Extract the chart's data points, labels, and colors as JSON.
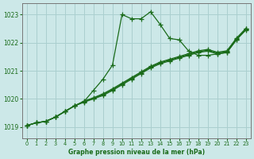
{
  "title": "Graphe pression niveau de la mer (hPa)",
  "background_color": "#cce8e8",
  "grid_color": "#aacfcf",
  "line_color": "#1a6b1a",
  "ylim": [
    1018.6,
    1023.4
  ],
  "xlim": [
    -0.5,
    23.5
  ],
  "yticks": [
    1019,
    1020,
    1021,
    1022,
    1023
  ],
  "xticks": [
    0,
    1,
    2,
    3,
    4,
    5,
    6,
    7,
    8,
    9,
    10,
    11,
    12,
    13,
    14,
    15,
    16,
    17,
    18,
    19,
    20,
    21,
    22,
    23
  ],
  "series": [
    [
      1019.05,
      1019.15,
      1019.2,
      1019.35,
      1019.55,
      1019.75,
      1019.9,
      1020.3,
      1020.7,
      1021.2,
      1023.0,
      1022.85,
      1022.85,
      1023.1,
      1022.65,
      1022.15,
      1022.1,
      1021.7,
      1021.55,
      1021.55,
      1021.6,
      1021.65,
      1022.1,
      1022.5
    ],
    [
      1019.05,
      1019.15,
      1019.2,
      1019.35,
      1019.55,
      1019.75,
      1019.88,
      1020.0,
      1020.12,
      1020.3,
      1020.5,
      1020.7,
      1020.9,
      1021.1,
      1021.25,
      1021.35,
      1021.45,
      1021.55,
      1021.65,
      1021.7,
      1021.6,
      1021.65,
      1022.1,
      1022.45
    ],
    [
      1019.05,
      1019.15,
      1019.2,
      1019.35,
      1019.55,
      1019.75,
      1019.9,
      1020.02,
      1020.15,
      1020.33,
      1020.53,
      1020.73,
      1020.93,
      1021.13,
      1021.28,
      1021.38,
      1021.48,
      1021.58,
      1021.68,
      1021.73,
      1021.63,
      1021.68,
      1022.13,
      1022.48
    ],
    [
      1019.05,
      1019.15,
      1019.2,
      1019.35,
      1019.55,
      1019.75,
      1019.92,
      1020.04,
      1020.18,
      1020.36,
      1020.56,
      1020.76,
      1020.96,
      1021.16,
      1021.31,
      1021.41,
      1021.51,
      1021.61,
      1021.71,
      1021.76,
      1021.66,
      1021.71,
      1022.16,
      1022.51
    ]
  ]
}
